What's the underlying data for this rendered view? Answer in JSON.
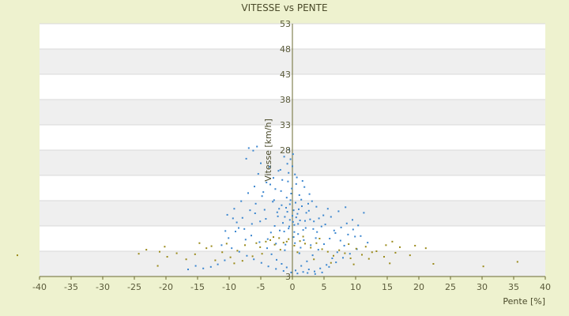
{
  "chart_data": {
    "type": "scatter",
    "title": "VITESSE vs PENTE",
    "xlabel": "Pente [%]",
    "ylabel": "Vitesse [km/h]",
    "xlim": [
      -40,
      40
    ],
    "ylim": [
      3,
      53
    ],
    "x_ticks": [
      -40,
      -35,
      -30,
      -25,
      -20,
      -15,
      -10,
      -5,
      0,
      5,
      10,
      15,
      20,
      25,
      30,
      35,
      40
    ],
    "y_ticks": [
      53,
      48,
      43,
      38,
      33,
      28
    ],
    "y_tick_bottom": 3,
    "grid": true,
    "colors": {
      "primary": "#3b86cf",
      "secondary": "#9a8a1a",
      "band": "#efefef",
      "plot_bg": "#ffffff",
      "axis": "#6b6b30"
    },
    "series": [
      {
        "key": "blue",
        "points": [
          [
            0.2,
            16.1
          ],
          [
            -0.4,
            17.3
          ],
          [
            0.8,
            15.4
          ],
          [
            -1.2,
            14.8
          ],
          [
            1.5,
            16.9
          ],
          [
            -0.9,
            18.6
          ],
          [
            0.3,
            13.2
          ],
          [
            2.1,
            12.6
          ],
          [
            -2.4,
            15.7
          ],
          [
            1.1,
            19.1
          ],
          [
            -0.1,
            20.4
          ],
          [
            0.6,
            21.3
          ],
          [
            -1.6,
            22.1
          ],
          [
            0.9,
            11.4
          ],
          [
            2.8,
            14.3
          ],
          [
            -3.1,
            17.8
          ],
          [
            3.4,
            13.9
          ],
          [
            -0.6,
            23.5
          ],
          [
            1.8,
            10.2
          ],
          [
            -2.0,
            12.1
          ],
          [
            0.0,
            24.8
          ],
          [
            -0.3,
            26.2
          ],
          [
            0.4,
            9.6
          ],
          [
            1.3,
            8.7
          ],
          [
            -1.1,
            9.3
          ],
          [
            2.5,
            17.4
          ],
          [
            -2.7,
            20.3
          ],
          [
            3.9,
            11.8
          ],
          [
            -4.2,
            14.4
          ],
          [
            4.6,
            12.9
          ],
          [
            -4.8,
            18.9
          ],
          [
            0.7,
            22.6
          ],
          [
            -0.8,
            25.3
          ],
          [
            1.9,
            20.7
          ],
          [
            -1.9,
            24.1
          ],
          [
            0.1,
            27.2
          ],
          [
            -0.5,
            28.1
          ],
          [
            -1.3,
            26.7
          ],
          [
            -2.2,
            23.9
          ],
          [
            -3.0,
            22.5
          ],
          [
            -3.6,
            24.7
          ],
          [
            -4.1,
            21.6
          ],
          [
            -5.0,
            25.4
          ],
          [
            -5.6,
            28.7
          ],
          [
            -6.2,
            27.9
          ],
          [
            -6.9,
            28.4
          ],
          [
            -7.3,
            26.3
          ],
          [
            -5.4,
            23.3
          ],
          [
            -6.0,
            20.8
          ],
          [
            -7.0,
            19.5
          ],
          [
            -8.1,
            17.9
          ],
          [
            -9.2,
            16.4
          ],
          [
            -10.3,
            15.2
          ],
          [
            -8.8,
            13.7
          ],
          [
            -7.6,
            12.4
          ],
          [
            -6.5,
            11.1
          ],
          [
            -5.2,
            9.8
          ],
          [
            -4.0,
            8.6
          ],
          [
            -3.3,
            7.4
          ],
          [
            -2.5,
            6.3
          ],
          [
            -1.7,
            5.5
          ],
          [
            -0.9,
            4.8
          ],
          [
            0.5,
            4.2
          ],
          [
            1.4,
            5.1
          ],
          [
            2.3,
            6.0
          ],
          [
            3.2,
            7.2
          ],
          [
            4.1,
            8.3
          ],
          [
            5.0,
            9.4
          ],
          [
            5.9,
            10.5
          ],
          [
            6.8,
            11.6
          ],
          [
            7.7,
            12.7
          ],
          [
            8.6,
            13.5
          ],
          [
            9.5,
            14.2
          ],
          [
            10.4,
            13.1
          ],
          [
            11.3,
            15.6
          ],
          [
            9.9,
            10.9
          ],
          [
            8.2,
            9.1
          ],
          [
            7.1,
            7.8
          ],
          [
            6.3,
            6.6
          ],
          [
            5.4,
            5.3
          ],
          [
            4.4,
            4.6
          ],
          [
            3.5,
            4.0
          ],
          [
            2.6,
            4.4
          ],
          [
            1.7,
            3.9
          ],
          [
            0.8,
            3.6
          ],
          [
            -0.2,
            3.8
          ],
          [
            -1.4,
            4.1
          ],
          [
            -2.6,
            4.5
          ],
          [
            -3.8,
            5.0
          ],
          [
            -4.9,
            5.7
          ],
          [
            -6.1,
            6.4
          ],
          [
            -7.2,
            7.1
          ],
          [
            -8.4,
            7.9
          ],
          [
            -9.6,
            8.6
          ],
          [
            -10.7,
            6.2
          ],
          [
            -11.8,
            5.4
          ],
          [
            -12.9,
            4.9
          ],
          [
            -14.1,
            4.6
          ],
          [
            -15.3,
            5.1
          ],
          [
            -16.5,
            4.4
          ],
          [
            -11.2,
            9.2
          ],
          [
            -10.1,
            10.6
          ],
          [
            -9.0,
            11.9
          ],
          [
            -7.9,
            14.6
          ],
          [
            -6.7,
            16.1
          ],
          [
            -5.8,
            17.4
          ],
          [
            -4.6,
            19.7
          ],
          [
            -3.5,
            21.2
          ],
          [
            -2.9,
            18.1
          ],
          [
            -1.8,
            19.9
          ],
          [
            -0.7,
            21.8
          ],
          [
            0.4,
            23.2
          ],
          [
            1.6,
            21.9
          ],
          [
            2.7,
            19.3
          ],
          [
            3.8,
            16.8
          ],
          [
            4.9,
            15.1
          ],
          [
            6.1,
            14.8
          ],
          [
            7.3,
            15.9
          ],
          [
            8.4,
            16.7
          ],
          [
            9.6,
            12.3
          ],
          [
            10.8,
            11.0
          ],
          [
            11.9,
            9.7
          ],
          [
            10.2,
            8.4
          ],
          [
            9.1,
            7.5
          ],
          [
            8.0,
            6.7
          ],
          [
            6.9,
            5.8
          ],
          [
            5.8,
            4.9
          ],
          [
            4.7,
            3.8
          ],
          [
            3.6,
            3.5
          ],
          [
            2.4,
            3.7
          ],
          [
            -0.6,
            12.5
          ],
          [
            0.3,
            11.8
          ],
          [
            -1.5,
            13.6
          ],
          [
            1.2,
            14.1
          ],
          [
            -2.1,
            16.4
          ],
          [
            2.2,
            15.6
          ],
          [
            -2.8,
            13.0
          ],
          [
            3.1,
            17.9
          ],
          [
            -3.4,
            11.7
          ],
          [
            3.7,
            10.6
          ],
          [
            0.0,
            15.0
          ],
          [
            0.5,
            17.6
          ],
          [
            -0.4,
            14.2
          ],
          [
            0.9,
            13.4
          ],
          [
            -1.0,
            16.6
          ],
          [
            1.4,
            18.2
          ],
          [
            -1.3,
            11.9
          ],
          [
            1.7,
            12.2
          ],
          [
            -0.2,
            19.4
          ],
          [
            0.2,
            10.8
          ],
          [
            -0.8,
            15.8
          ],
          [
            0.6,
            14.7
          ],
          [
            -0.3,
            18.1
          ],
          [
            1.0,
            16.3
          ],
          [
            -1.7,
            17.1
          ],
          [
            2.0,
            14.0
          ],
          [
            -2.3,
            14.9
          ],
          [
            2.6,
            16.0
          ],
          [
            -0.5,
            12.9
          ],
          [
            0.1,
            13.8
          ],
          [
            -4.4,
            16.2
          ],
          [
            -5.1,
            13.9
          ],
          [
            -3.9,
            10.4
          ],
          [
            4.2,
            14.5
          ],
          [
            5.2,
            13.3
          ],
          [
            3.3,
            12.4
          ],
          [
            -2.6,
            9.5
          ],
          [
            2.9,
            9.2
          ],
          [
            -1.2,
            8.2
          ],
          [
            1.1,
            7.6
          ],
          [
            -6.4,
            13.4
          ],
          [
            -5.9,
            15.5
          ],
          [
            6.6,
            12.1
          ],
          [
            5.6,
            16.4
          ],
          [
            -7.4,
            10.3
          ],
          [
            7.6,
            10.1
          ],
          [
            -8.5,
            12.6
          ],
          [
            8.8,
            11.3
          ],
          [
            -9.4,
            14.5
          ],
          [
            -10.6,
            12.0
          ]
        ]
      },
      {
        "key": "olive",
        "points": [
          [
            -43.5,
            7.2
          ],
          [
            -24.3,
            7.5
          ],
          [
            -23.1,
            8.3
          ],
          [
            -21.0,
            7.9
          ],
          [
            -20.2,
            8.9
          ],
          [
            -19.8,
            6.9
          ],
          [
            -21.3,
            5.1
          ],
          [
            -15.4,
            7.4
          ],
          [
            -13.6,
            8.6
          ],
          [
            -12.2,
            6.2
          ],
          [
            -11.1,
            7.8
          ],
          [
            -9.8,
            6.8
          ],
          [
            -8.7,
            8.1
          ],
          [
            -7.5,
            9.2
          ],
          [
            -6.3,
            7.0
          ],
          [
            -5.1,
            8.8
          ],
          [
            -4.2,
            9.9
          ],
          [
            -3.5,
            10.2
          ],
          [
            -2.8,
            9.3
          ],
          [
            -2.1,
            10.6
          ],
          [
            -1.4,
            9.7
          ],
          [
            -0.6,
            10.4
          ],
          [
            0.3,
            9.1
          ],
          [
            1.2,
            10.0
          ],
          [
            2.0,
            9.5
          ],
          [
            2.9,
            8.7
          ],
          [
            3.8,
            9.6
          ],
          [
            4.7,
            8.4
          ],
          [
            5.6,
            7.9
          ],
          [
            6.5,
            7.1
          ],
          [
            7.4,
            8.2
          ],
          [
            8.3,
            7.6
          ],
          [
            9.2,
            6.6
          ],
          [
            10.1,
            8.5
          ],
          [
            11.0,
            7.3
          ],
          [
            12.1,
            6.5
          ],
          [
            13.3,
            8.0
          ],
          [
            14.5,
            6.9
          ],
          [
            15.4,
            5.6
          ],
          [
            16.3,
            7.7
          ],
          [
            17.0,
            8.8
          ],
          [
            18.6,
            7.2
          ],
          [
            19.4,
            9.1
          ],
          [
            21.1,
            8.6
          ],
          [
            22.3,
            5.5
          ],
          [
            14.8,
            9.2
          ],
          [
            12.6,
            7.8
          ],
          [
            -16.8,
            6.4
          ],
          [
            -18.3,
            7.6
          ],
          [
            30.2,
            5.0
          ],
          [
            35.6,
            5.9
          ],
          [
            -10.4,
            9.5
          ],
          [
            -7.9,
            6.1
          ],
          [
            -4.8,
            7.5
          ],
          [
            -1.9,
            8.3
          ],
          [
            0.8,
            7.8
          ],
          [
            3.4,
            6.4
          ],
          [
            6.1,
            5.7
          ],
          [
            8.9,
            9.4
          ],
          [
            11.6,
            8.9
          ],
          [
            -3.0,
            10.8
          ],
          [
            -0.9,
            9.9
          ],
          [
            1.7,
            10.9
          ],
          [
            -5.7,
            9.6
          ],
          [
            4.3,
            10.5
          ],
          [
            -12.8,
            9.0
          ],
          [
            9.7,
            5.4
          ],
          [
            -9.2,
            5.6
          ],
          [
            15.8,
            9.9
          ],
          [
            -14.7,
            9.6
          ]
        ]
      }
    ]
  }
}
